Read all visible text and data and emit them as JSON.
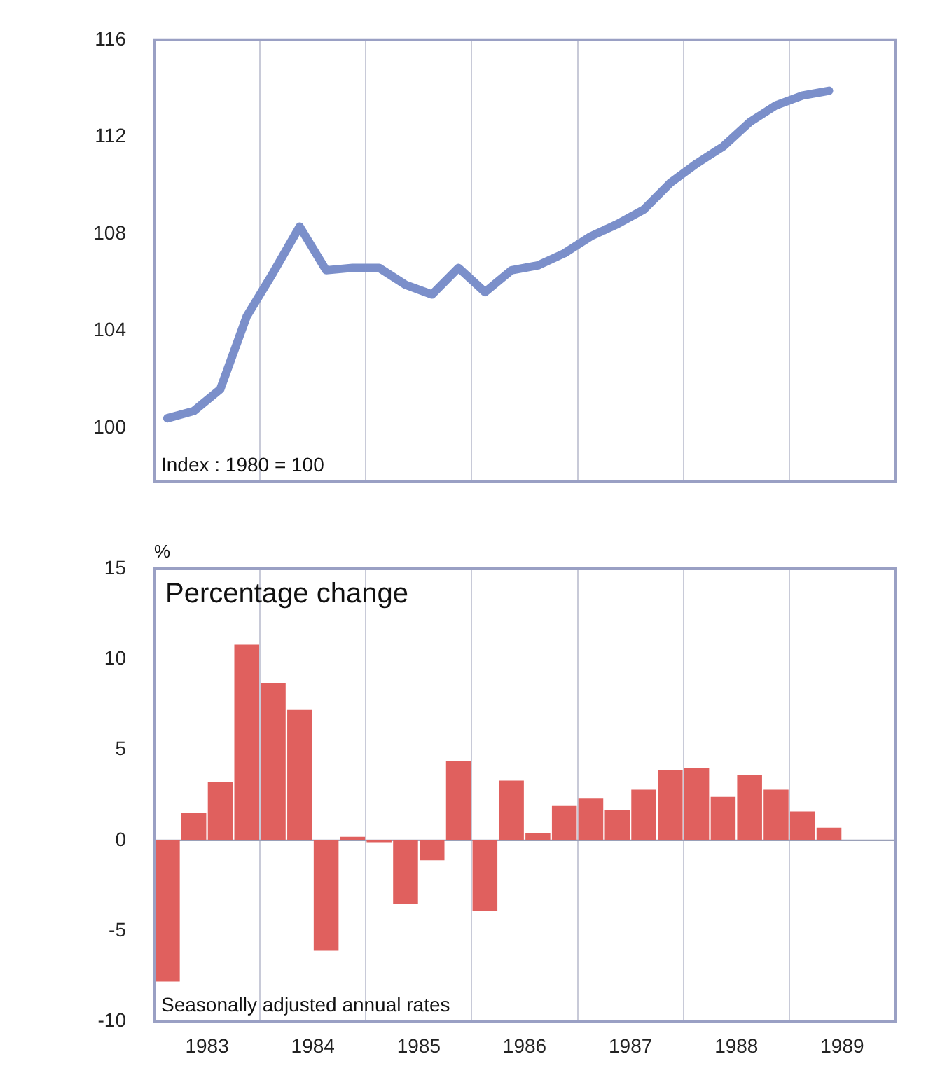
{
  "chart_data": [
    {
      "type": "line",
      "annotations": [
        "Index : 1980 = 100"
      ],
      "x": [
        1983.125,
        1983.375,
        1983.625,
        1983.875,
        1984.125,
        1984.375,
        1984.625,
        1984.875,
        1985.125,
        1985.375,
        1985.625,
        1985.875,
        1986.125,
        1986.375,
        1986.625,
        1986.875,
        1987.125,
        1987.375,
        1987.625,
        1987.875,
        1988.125,
        1988.375,
        1988.625,
        1988.875,
        1989.125,
        1989.375
      ],
      "series": [
        {
          "color": "#7b8fca",
          "values": [
            100.4,
            100.7,
            101.6,
            104.6,
            106.4,
            108.3,
            106.5,
            106.6,
            106.6,
            105.9,
            105.5,
            106.6,
            105.6,
            106.5,
            106.7,
            107.2,
            107.9,
            108.4,
            109.0,
            110.1,
            110.9,
            111.6,
            112.6,
            113.3,
            113.7,
            113.9
          ]
        }
      ],
      "xlim": [
        1983,
        1990
      ],
      "xticks": [
        {
          "value": 1983,
          "label": null
        },
        {
          "value": 1984,
          "label": null
        },
        {
          "value": 1985,
          "label": null
        },
        {
          "value": 1986,
          "label": null
        },
        {
          "value": 1987,
          "label": null
        },
        {
          "value": 1988,
          "label": null
        },
        {
          "value": 1989,
          "label": null
        },
        {
          "value": 1990,
          "label": null
        }
      ],
      "ylim": [
        97.8,
        116
      ],
      "yticks": [
        100,
        104,
        108,
        112,
        116
      ],
      "grid": "x",
      "legend": false,
      "marker": "none",
      "line_style": "solid",
      "tick_labels": "y"
    },
    {
      "type": "bar",
      "title": "Percentage change",
      "ylabel": "%",
      "annotations": [
        "Seasonally adjusted annual rates"
      ],
      "x": [
        1983.125,
        1983.375,
        1983.625,
        1983.875,
        1984.125,
        1984.375,
        1984.625,
        1984.875,
        1985.125,
        1985.375,
        1985.625,
        1985.875,
        1986.125,
        1986.375,
        1986.625,
        1986.875,
        1987.125,
        1987.375,
        1987.625,
        1987.875,
        1988.125,
        1988.375,
        1988.625,
        1988.875,
        1989.125,
        1989.375
      ],
      "series": [
        {
          "color": "#e0605e",
          "values": [
            -7.8,
            1.5,
            3.2,
            10.8,
            8.7,
            7.2,
            -6.1,
            0.2,
            -0.1,
            -3.5,
            -1.1,
            4.4,
            -3.9,
            3.3,
            0.4,
            1.9,
            2.3,
            1.7,
            2.8,
            3.9,
            4.0,
            2.4,
            3.6,
            2.8,
            1.6,
            0.7
          ]
        }
      ],
      "xlim": [
        1983,
        1990
      ],
      "xticks": [
        {
          "value": 1983,
          "label": null
        },
        {
          "value": 1983.5,
          "label": "1983"
        },
        {
          "value": 1984,
          "label": null
        },
        {
          "value": 1984.5,
          "label": "1984"
        },
        {
          "value": 1985,
          "label": null
        },
        {
          "value": 1985.5,
          "label": "1985"
        },
        {
          "value": 1986,
          "label": null
        },
        {
          "value": 1986.5,
          "label": "1986"
        },
        {
          "value": 1987,
          "label": null
        },
        {
          "value": 1987.5,
          "label": "1987"
        },
        {
          "value": 1988,
          "label": null
        },
        {
          "value": 1988.5,
          "label": "1988"
        },
        {
          "value": 1989,
          "label": null
        },
        {
          "value": 1989.5,
          "label": "1989"
        },
        {
          "value": 1990,
          "label": null
        }
      ],
      "ylim": [
        -10,
        15
      ],
      "yticks": [
        -10,
        -5,
        0,
        5,
        10,
        15
      ],
      "grid": "x",
      "legend": false,
      "ref_lines": [
        {
          "axis": "y",
          "value": 0,
          "color": "#9aa0b8"
        }
      ]
    }
  ]
}
